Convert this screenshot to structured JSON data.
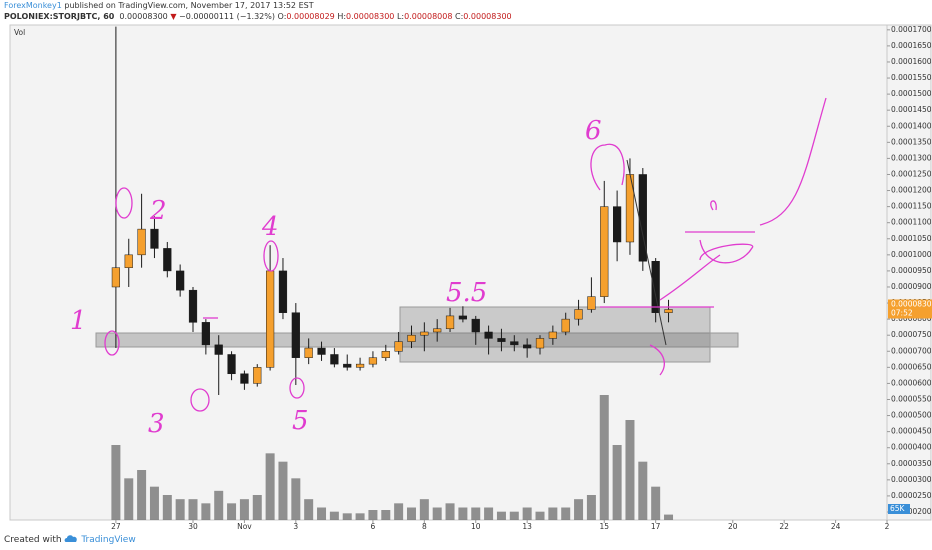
{
  "header": {
    "author": "ForexMonkey1",
    "published": "published on TradingView.com, November 17, 2017 13:52 EST",
    "symbol": "POLONIEX:STORJBTC, 60",
    "last": "0.00008300",
    "arrow": "▼",
    "change": "−0.00000111 (−1.32%)",
    "ohlc": [
      {
        "key": "O:",
        "value": "0.00008029"
      },
      {
        "key": "H:",
        "value": "0.00008300"
      },
      {
        "key": "L:",
        "value": "0.00008008"
      },
      {
        "key": "C:",
        "value": "0.00008300"
      }
    ]
  },
  "footer": {
    "prefix": "Created with",
    "brand": "TradingView"
  },
  "chart_data": {
    "type": "candlestick",
    "pane_label": "Vol",
    "x": [
      0,
      0.5,
      1,
      1.5,
      2,
      2.5,
      3,
      3.5,
      4,
      4.5,
      5,
      5.5,
      6,
      6.5,
      7,
      7.5,
      8,
      8.5,
      9,
      9.5,
      10,
      10.5,
      11,
      11.5,
      12,
      12.5,
      13,
      13.5,
      14,
      14.5,
      15,
      15.5,
      16,
      16.5,
      17,
      17.5,
      18,
      18.5,
      19,
      19.5,
      20,
      20.5,
      21,
      21.5
    ],
    "open": [
      9e-05,
      9.6e-05,
      0.0001,
      0.000108,
      0.000102,
      9.5e-05,
      8.9e-05,
      7.9e-05,
      7.2e-05,
      6.9e-05,
      6.3e-05,
      6e-05,
      6.5e-05,
      9.5e-05,
      8.2e-05,
      6.8e-05,
      7.1e-05,
      6.9e-05,
      6.6e-05,
      6.5e-05,
      6.6e-05,
      6.8e-05,
      7e-05,
      7.3e-05,
      7.5e-05,
      7.6e-05,
      7.7e-05,
      8.1e-05,
      8e-05,
      7.6e-05,
      7.4e-05,
      7.3e-05,
      7.2e-05,
      7.1e-05,
      7.4e-05,
      7.6e-05,
      8e-05,
      8.3e-05,
      8.7e-05,
      0.000115,
      0.000104,
      0.000125,
      9.8e-05,
      8.2e-05
    ],
    "high": [
      0.000171,
      0.000105,
      0.000119,
      0.000112,
      0.000104,
      9.7e-05,
      9e-05,
      8e-05,
      7.5e-05,
      7e-05,
      6.4e-05,
      6.6e-05,
      0.000103,
      9.9e-05,
      8.5e-05,
      7.4e-05,
      7.3e-05,
      7.1e-05,
      6.9e-05,
      6.8e-05,
      7e-05,
      7.2e-05,
      7.6e-05,
      7.8e-05,
      7.9e-05,
      8e-05,
      8.35e-05,
      8.4e-05,
      8.1e-05,
      7.8e-05,
      7.7e-05,
      7.5e-05,
      7.4e-05,
      7.5e-05,
      7.8e-05,
      8.2e-05,
      8.6e-05,
      9.3e-05,
      0.000123,
      0.00012,
      0.00013,
      0.000127,
      9.9e-05,
      8.6e-05
    ],
    "low": [
      7.1e-05,
      9e-05,
      9.6e-05,
      9.9e-05,
      9.3e-05,
      8.7e-05,
      7.6e-05,
      6.9e-05,
      5.64e-05,
      6.1e-05,
      5.8e-05,
      5.9e-05,
      6.4e-05,
      8e-05,
      5.95e-05,
      6.6e-05,
      6.7e-05,
      6.5e-05,
      6.4e-05,
      6.4e-05,
      6.5e-05,
      6.7e-05,
      6.9e-05,
      7.1e-05,
      7e-05,
      7.3e-05,
      7.6e-05,
      7.9e-05,
      7.2e-05,
      6.9e-05,
      7e-05,
      7e-05,
      6.8e-05,
      6.9e-05,
      7.2e-05,
      7.5e-05,
      7.8e-05,
      8.2e-05,
      8.5e-05,
      9.8e-05,
      0.0001,
      9.5e-05,
      7.9e-05,
      7.9e-05
    ],
    "close": [
      9.6e-05,
      0.0001,
      0.000108,
      0.000102,
      9.5e-05,
      8.9e-05,
      7.9e-05,
      7.2e-05,
      6.9e-05,
      6.3e-05,
      6e-05,
      6.5e-05,
      9.5e-05,
      8.2e-05,
      6.8e-05,
      7.1e-05,
      6.9e-05,
      6.6e-05,
      6.5e-05,
      6.6e-05,
      6.8e-05,
      7e-05,
      7.3e-05,
      7.5e-05,
      7.6e-05,
      7.7e-05,
      8.1e-05,
      8e-05,
      7.6e-05,
      7.4e-05,
      7.3e-05,
      7.2e-05,
      7.1e-05,
      7.4e-05,
      7.6e-05,
      8e-05,
      8.3e-05,
      8.7e-05,
      0.000115,
      0.000104,
      0.000125,
      9.8e-05,
      8.2e-05,
      8.3e-05
    ],
    "up_color": "#f5a02e",
    "down_color": "#1a1a1a",
    "volume": {
      "color": "#6e6e6e",
      "vlim": [
        0,
        1800000
      ],
      "values": [
        900000,
        500000,
        600000,
        400000,
        300000,
        250000,
        250000,
        200000,
        350000,
        200000,
        250000,
        300000,
        800000,
        700000,
        500000,
        250000,
        150000,
        100000,
        80000,
        80000,
        120000,
        120000,
        200000,
        150000,
        250000,
        150000,
        200000,
        150000,
        150000,
        150000,
        100000,
        100000,
        150000,
        100000,
        150000,
        150000,
        250000,
        300000,
        1500000,
        900000,
        1200000,
        700000,
        400000,
        65000
      ],
      "value_labels": [
        null,
        null,
        null,
        null,
        null,
        null,
        null,
        null,
        null,
        null,
        null,
        null,
        null,
        null,
        null,
        null,
        null,
        null,
        null,
        null,
        null,
        null,
        null,
        null,
        null,
        null,
        null,
        null,
        null,
        null,
        null,
        null,
        null,
        null,
        null,
        null,
        null,
        null,
        null,
        null,
        null,
        null,
        null,
        "65K"
      ]
    },
    "last_price_label": "0.00008300",
    "countdown": "07:52",
    "xlim": [
      -4.12,
      30
    ],
    "xticks": [
      {
        "value": 0,
        "label": "27"
      },
      {
        "value": 3,
        "label": "30"
      },
      {
        "value": 5,
        "label": "Nov"
      },
      {
        "value": 7,
        "label": "3"
      },
      {
        "value": 10,
        "label": "6"
      },
      {
        "value": 12,
        "label": "8"
      },
      {
        "value": 14,
        "label": "10"
      },
      {
        "value": 16,
        "label": "13"
      },
      {
        "value": 19,
        "label": "15"
      },
      {
        "value": 21,
        "label": "17"
      },
      {
        "value": 24,
        "label": "20"
      },
      {
        "value": 26,
        "label": "22"
      },
      {
        "value": 28,
        "label": "24"
      },
      {
        "value": 30,
        "label": "2"
      }
    ],
    "ylim": [
      1.751e-05,
      0.0001715
    ],
    "yticks": [
      {
        "value": 2e-05,
        "label": "0.00002000"
      },
      {
        "value": 2.5e-05,
        "label": "0.00002500"
      },
      {
        "value": 3e-05,
        "label": "0.00003000"
      },
      {
        "value": 3.5e-05,
        "label": "0.00003500"
      },
      {
        "value": 4e-05,
        "label": "0.00004000"
      },
      {
        "value": 4.5e-05,
        "label": "0.00004500"
      },
      {
        "value": 5e-05,
        "label": "0.00005000"
      },
      {
        "value": 5.5e-05,
        "label": "0.00005500"
      },
      {
        "value": 6e-05,
        "label": "0.00006000"
      },
      {
        "value": 6.5e-05,
        "label": "0.00006500"
      },
      {
        "value": 7e-05,
        "label": "0.00007000"
      },
      {
        "value": 7.5e-05,
        "label": "0.00007500"
      },
      {
        "value": 8e-05,
        "label": "0.00008000"
      },
      {
        "value": 8.5e-05,
        "label": "0.00008500"
      },
      {
        "value": 9e-05,
        "label": "0.00009000"
      },
      {
        "value": 9.5e-05,
        "label": "0.00009500"
      },
      {
        "value": 0.0001,
        "label": "0.00010000"
      },
      {
        "value": 0.000105,
        "label": "0.00010500"
      },
      {
        "value": 0.00011,
        "label": "0.00011000"
      },
      {
        "value": 0.000115,
        "label": "0.00011500"
      },
      {
        "value": 0.00012,
        "label": "0.00012000"
      },
      {
        "value": 0.000125,
        "label": "0.00012500"
      },
      {
        "value": 0.00013,
        "label": "0.00013000"
      },
      {
        "value": 0.000135,
        "label": "0.00013500"
      },
      {
        "value": 0.00014,
        "label": "0.00014000"
      },
      {
        "value": 0.000145,
        "label": "0.00014500"
      },
      {
        "value": 0.00015,
        "label": "0.00015000"
      },
      {
        "value": 0.000155,
        "label": "0.00015500"
      },
      {
        "value": 0.00016,
        "label": "0.00016000"
      },
      {
        "value": 0.000165,
        "label": "0.00016500"
      },
      {
        "value": 0.00017,
        "label": "0.00017000"
      }
    ],
    "annotations": [
      "1",
      "2",
      "3",
      "4",
      "5",
      "5.5",
      "6"
    ]
  }
}
